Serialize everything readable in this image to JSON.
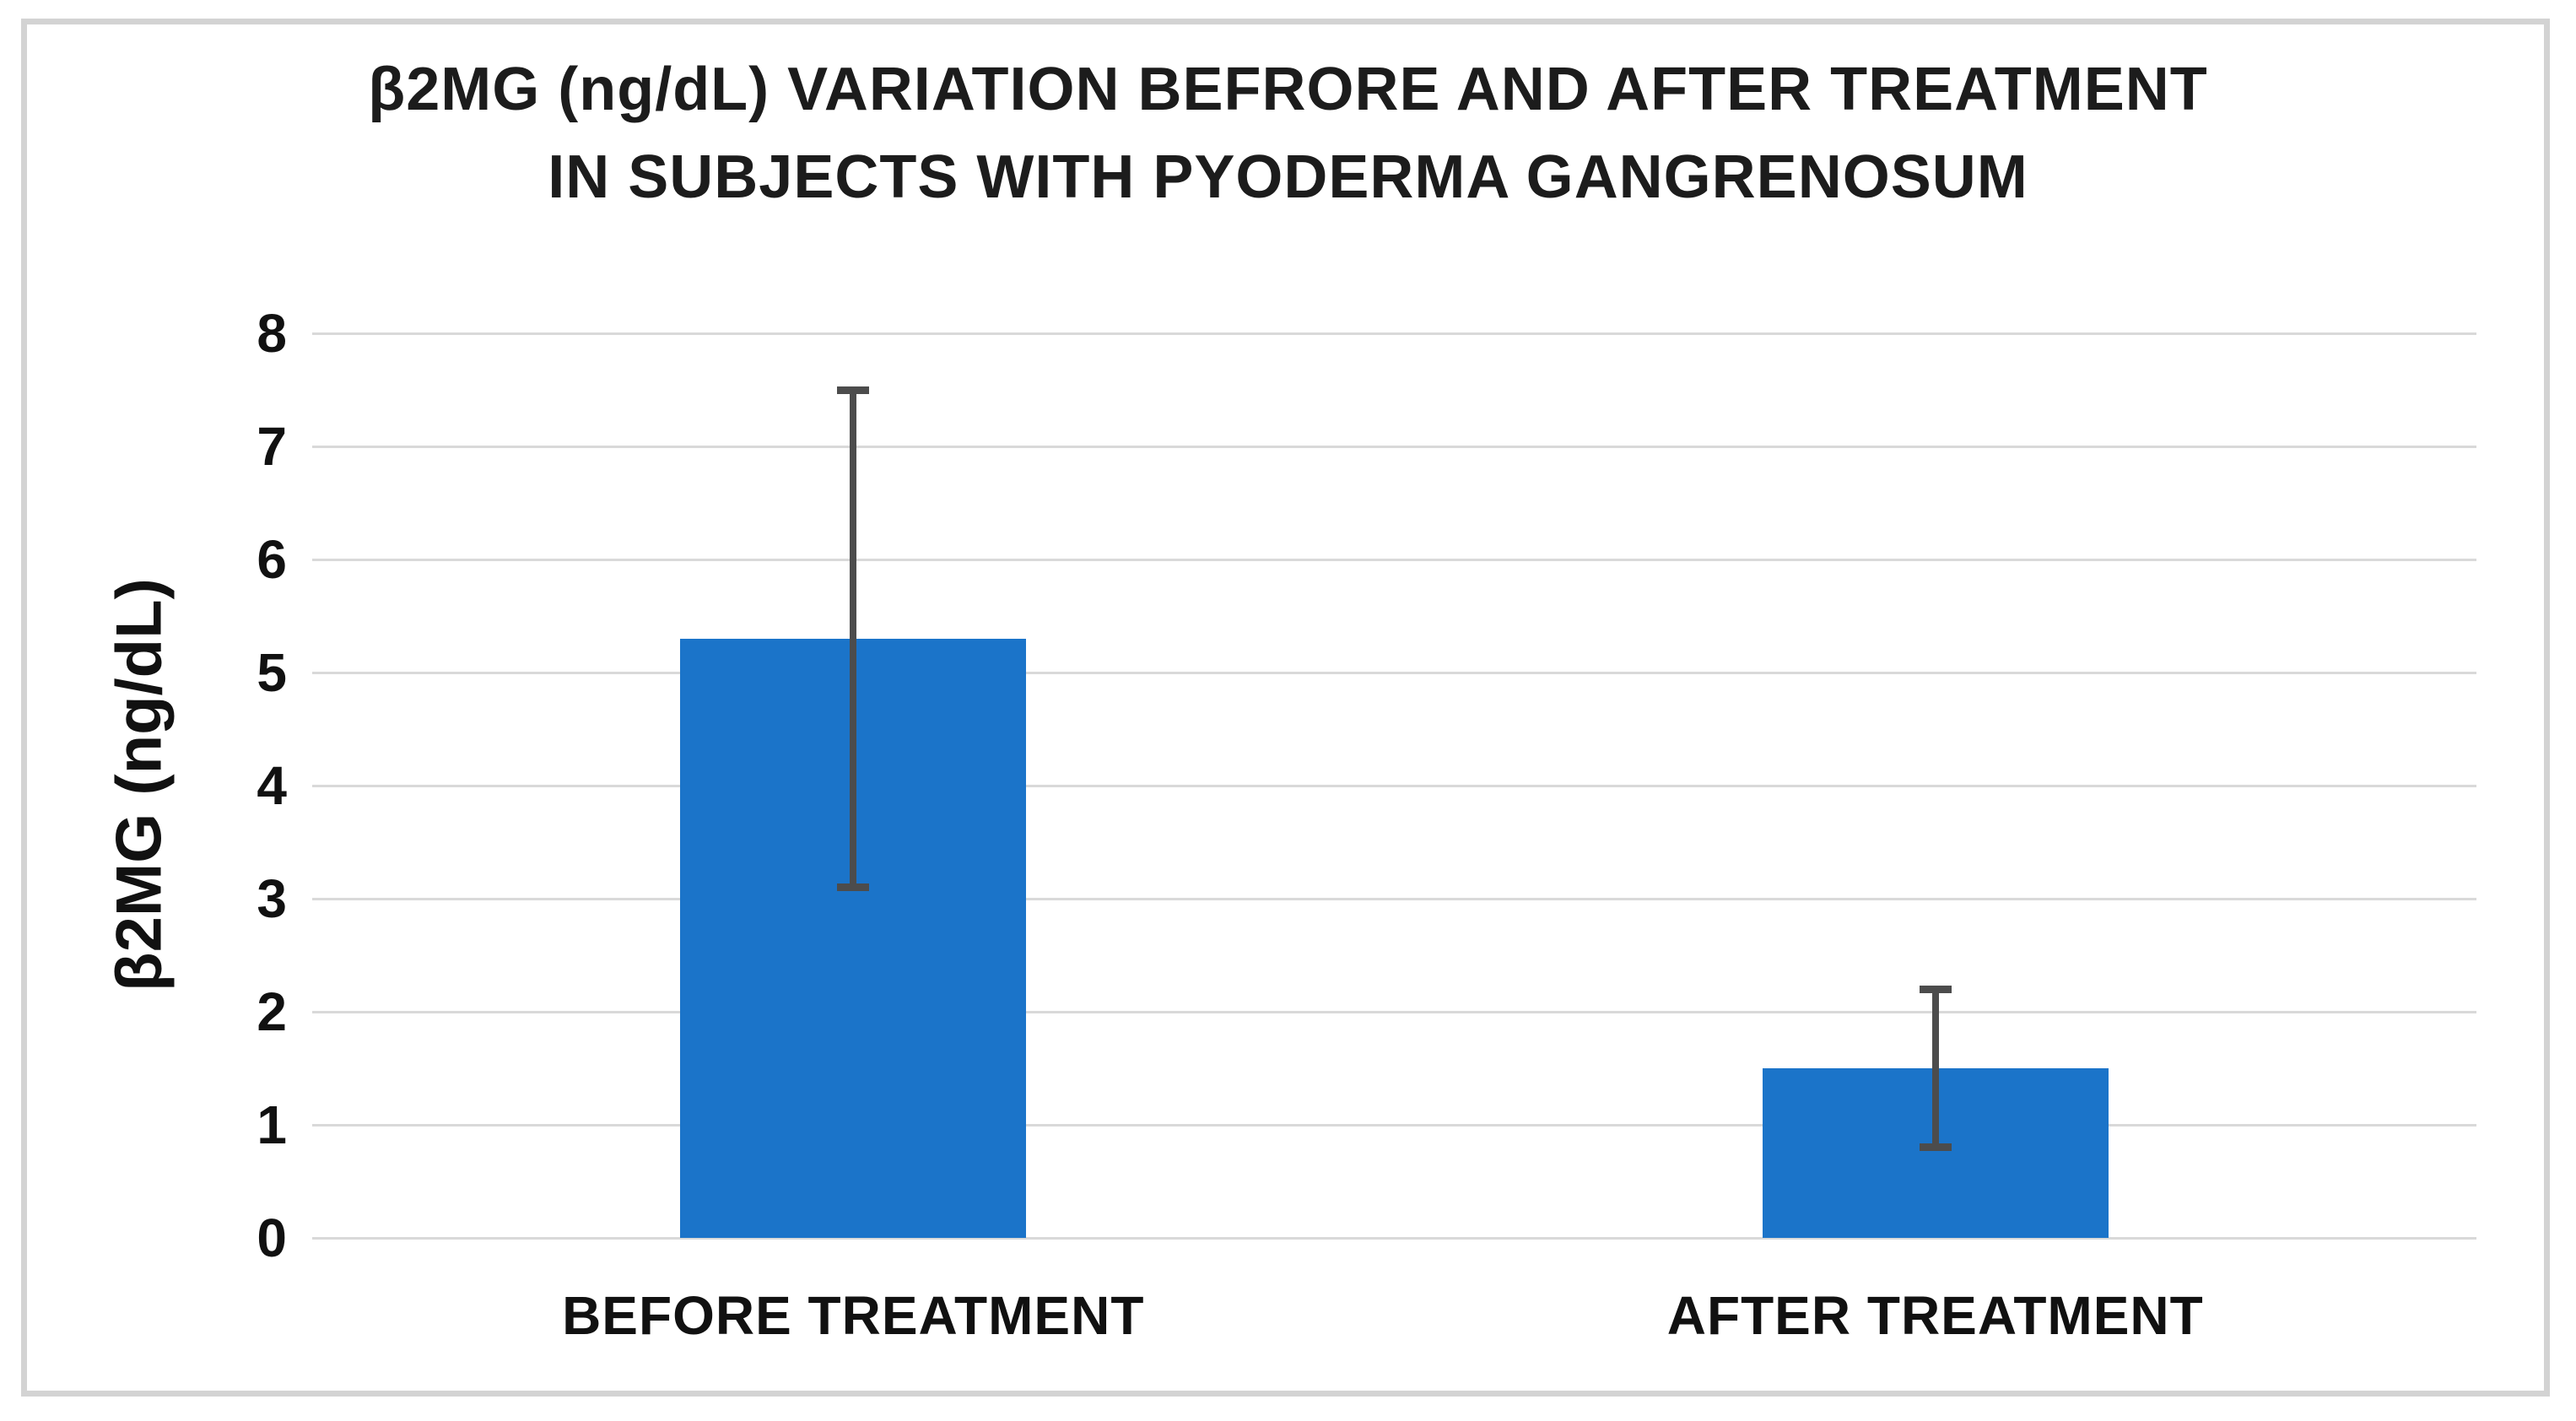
{
  "figure": {
    "background": "#ffffff",
    "border_color": "#d3d3d3"
  },
  "chart_data": {
    "type": "bar",
    "title": "β2MG (ng/dL) VARIATION BEFRORE AND AFTER TREATMENT IN SUBJECTS WITH PYODERMA GANGRENOSUM",
    "title_lines": [
      "β2MG (ng/dL) VARIATION BEFRORE AND AFTER TREATMENT",
      "IN SUBJECTS WITH PYODERMA GANGRENOSUM"
    ],
    "ylabel": "β2MG (ng/dL)",
    "xlabel": "",
    "categories": [
      "BEFORE TREATMENT",
      "AFTER TREATMENT"
    ],
    "values": [
      5.3,
      1.5
    ],
    "error_bars": {
      "type": "symmetric",
      "plus_minus": [
        2.2,
        0.7
      ],
      "upper": [
        7.5,
        2.2
      ],
      "lower": [
        3.1,
        0.8
      ]
    },
    "ylim": [
      0,
      8
    ],
    "yticks": [
      8,
      7,
      6,
      5,
      4,
      3,
      2,
      1,
      0
    ],
    "grid": "horizontal",
    "legend": "none",
    "colors": {
      "bar": "#1b74c9",
      "error_bar": "#4c4c4c",
      "gridline": "#d9d9d9",
      "title_text": "#1c1c1c",
      "axis_text": "#111111"
    }
  }
}
